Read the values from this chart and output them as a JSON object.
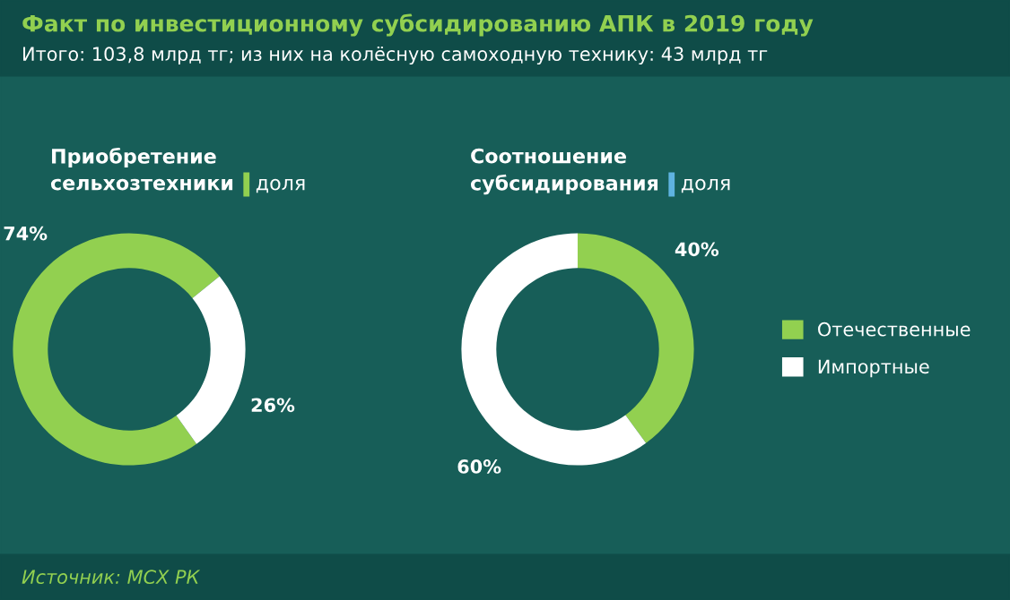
{
  "chart_data": [
    {
      "type": "donut",
      "title": "Приобретение сельхозтехники",
      "subtitle": "доля",
      "annotations": [
        "Факт по инвестиционному субсидированию АПК в 2019 году",
        "Итого: 103,8 млрд тг; из них на колёсную самоходную технику: 43 млрд тг",
        "Источник: МСХ РК"
      ],
      "categories": [
        null,
        null
      ],
      "values": [
        74,
        26
      ],
      "colors": [
        "#92d050",
        "#ffffff"
      ],
      "value_labels": [
        "74%",
        "26%"
      ],
      "legend": false
    },
    {
      "type": "donut",
      "title": "Соотношение субсидирования",
      "subtitle": "доля",
      "categories": [
        "Отечественные",
        "Импортные"
      ],
      "values": [
        40,
        60
      ],
      "colors": [
        "#92d050",
        "#ffffff"
      ],
      "value_labels": [
        "40%",
        "60%"
      ],
      "legend": "right"
    }
  ]
}
